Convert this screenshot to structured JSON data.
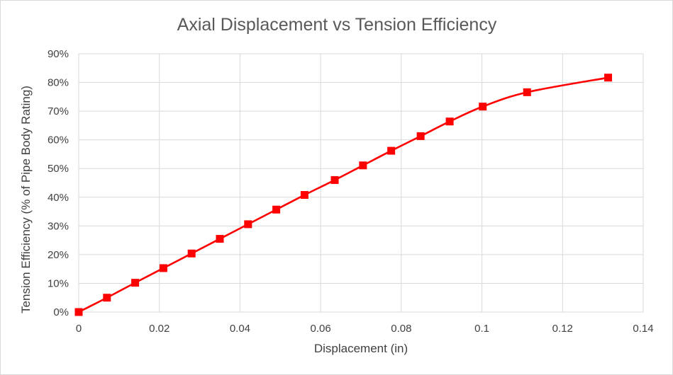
{
  "chart_data": {
    "type": "line",
    "title": "Axial Displacement vs Tension Efficiency",
    "xlabel": "Displacement (in)",
    "ylabel": "Tension Efficiency (% of Pipe Body Rating)",
    "xlim": [
      0,
      0.14
    ],
    "ylim": [
      0,
      90
    ],
    "x_ticks": [
      0,
      0.02,
      0.04,
      0.06,
      0.08,
      0.1,
      0.12,
      0.14
    ],
    "x_tick_labels": [
      "0",
      "0.02",
      "0.04",
      "0.06",
      "0.08",
      "0.1",
      "0.12",
      "0.14"
    ],
    "y_ticks": [
      0,
      10,
      20,
      30,
      40,
      50,
      60,
      70,
      80,
      90
    ],
    "y_tick_labels": [
      "0%",
      "10%",
      "20%",
      "30%",
      "40%",
      "50%",
      "60%",
      "70%",
      "80%",
      "90%"
    ],
    "grid": true,
    "legend": "none",
    "series": [
      {
        "color": "#ff0000",
        "marker": "square",
        "smooth": true,
        "x": [
          0,
          0.007,
          0.014,
          0.021,
          0.028,
          0.035,
          0.042,
          0.049,
          0.056,
          0.0635,
          0.0705,
          0.0775,
          0.0848,
          0.092,
          0.1002,
          0.1112,
          0.1313
        ],
        "y": [
          0,
          5,
          10.2,
          15.3,
          20.4,
          25.5,
          30.6,
          35.7,
          40.8,
          46,
          51.1,
          56.2,
          61.3,
          66.4,
          71.6,
          76.6,
          81.7
        ]
      }
    ]
  }
}
